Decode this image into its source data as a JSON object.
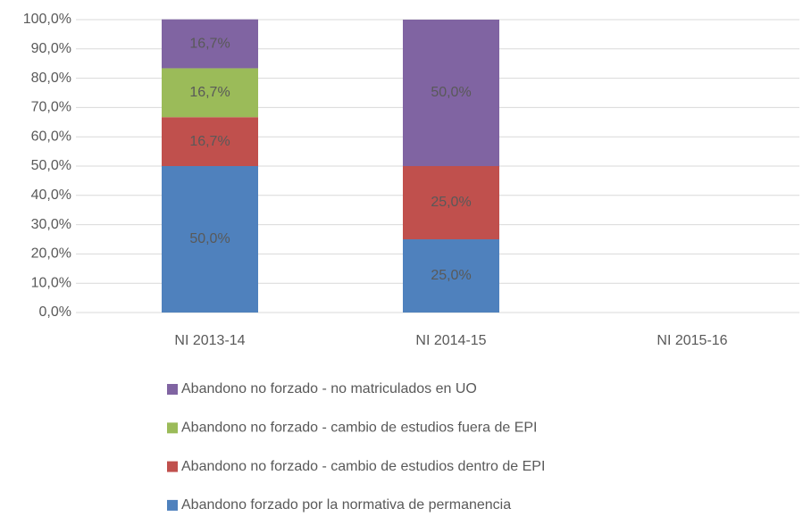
{
  "chart_data": {
    "type": "stacked_bar",
    "categories": [
      "NI 2013-14",
      "NI 2014-15",
      "NI 2015-16"
    ],
    "series": [
      {
        "name": "Abandono forzado por la normativa de permanencia",
        "color": "#4f81bd",
        "values": [
          50,
          25,
          null
        ],
        "value_labels": [
          "50,0%",
          "25,0%",
          null
        ]
      },
      {
        "name": "Abandono no forzado - cambio de estudios dentro de EPI",
        "color": "#c0504d",
        "values": [
          16.7,
          25,
          null
        ],
        "value_labels": [
          "16,7%",
          "25,0%",
          null
        ]
      },
      {
        "name": "Abandono no forzado - cambio de estudios fuera de EPI",
        "color": "#9bbb59",
        "values": [
          16.7,
          0,
          null
        ],
        "value_labels": [
          "16,7%",
          null,
          null
        ]
      },
      {
        "name": "Abandono no forzado - no matriculados en UO",
        "color": "#8064a2",
        "values": [
          16.7,
          50,
          null
        ],
        "value_labels": [
          "16,7%",
          "50,0%",
          null
        ]
      }
    ],
    "ylim": [
      0,
      100
    ],
    "yticks": [
      {
        "value": 0,
        "label": "0,0%"
      },
      {
        "value": 10,
        "label": "10,0%"
      },
      {
        "value": 20,
        "label": "20,0%"
      },
      {
        "value": 30,
        "label": "30,0%"
      },
      {
        "value": 40,
        "label": "40,0%"
      },
      {
        "value": 50,
        "label": "50,0%"
      },
      {
        "value": 60,
        "label": "60,0%"
      },
      {
        "value": 70,
        "label": "70,0%"
      },
      {
        "value": 80,
        "label": "80,0%"
      },
      {
        "value": 90,
        "label": "90,0%"
      },
      {
        "value": 100,
        "label": "100,0%"
      }
    ],
    "grid": true,
    "legend": "bottom"
  }
}
